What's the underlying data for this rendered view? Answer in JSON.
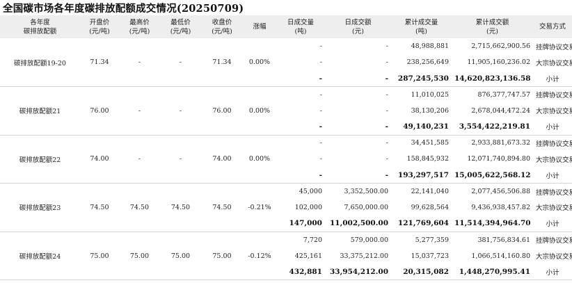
{
  "title": "全国碳市场各年度碳排放配额成交情况(20250709)",
  "headers": {
    "year": [
      "各年度",
      "碳排放配额"
    ],
    "open": [
      "开盘价",
      "(元/吨)"
    ],
    "high": [
      "最高价",
      "(元/吨)"
    ],
    "low": [
      "最低价",
      "(元/吨)"
    ],
    "close": [
      "收盘价",
      "(元/吨)"
    ],
    "change": [
      "涨幅"
    ],
    "day_vol": [
      "日成交量",
      "(吨)"
    ],
    "day_amt": [
      "日成交额",
      "(元)"
    ],
    "cum_vol": [
      "累计成交量",
      "(吨)"
    ],
    "cum_amt": [
      "累计成交额",
      "(元)"
    ],
    "mode": [
      "交易方式"
    ]
  },
  "groups": [
    {
      "name": "碳排放配额19-20",
      "open": "71.34",
      "high": "-",
      "low": "-",
      "close": "71.34",
      "change": "0.00%",
      "rows": [
        {
          "day_vol": "-",
          "day_amt": "-",
          "cum_vol": "48,988,881",
          "cum_amt": "2,715,662,900.56",
          "mode": "挂牌协议交易"
        },
        {
          "day_vol": "-",
          "day_amt": "-",
          "cum_vol": "238,256,649",
          "cum_amt": "11,905,160,236.02",
          "mode": "大宗协议交易"
        },
        {
          "day_vol": "-",
          "day_amt": "-",
          "cum_vol": "287,245,530",
          "cum_amt": "14,620,823,136.58",
          "mode": "小计"
        }
      ]
    },
    {
      "name": "碳排放配额21",
      "open": "76.00",
      "high": "-",
      "low": "-",
      "close": "76.00",
      "change": "0.00%",
      "rows": [
        {
          "day_vol": "-",
          "day_amt": "-",
          "cum_vol": "11,010,025",
          "cum_amt": "876,377,747.57",
          "mode": "挂牌协议交易"
        },
        {
          "day_vol": "-",
          "day_amt": "-",
          "cum_vol": "38,130,206",
          "cum_amt": "2,678,044,472.24",
          "mode": "大宗协议交易"
        },
        {
          "day_vol": "-",
          "day_amt": "-",
          "cum_vol": "49,140,231",
          "cum_amt": "3,554,422,219.81",
          "mode": "小计"
        }
      ]
    },
    {
      "name": "碳排放配额22",
      "open": "74.00",
      "high": "-",
      "low": "-",
      "close": "74.00",
      "change": "0.00%",
      "rows": [
        {
          "day_vol": "-",
          "day_amt": "-",
          "cum_vol": "34,451,585",
          "cum_amt": "2,933,881,673.32",
          "mode": "挂牌协议交易"
        },
        {
          "day_vol": "-",
          "day_amt": "-",
          "cum_vol": "158,845,932",
          "cum_amt": "12,071,740,894.80",
          "mode": "大宗协议交易"
        },
        {
          "day_vol": "-",
          "day_amt": "-",
          "cum_vol": "193,297,517",
          "cum_amt": "15,005,622,568.12",
          "mode": "小计"
        }
      ]
    },
    {
      "name": "碳排放配额23",
      "open": "74.50",
      "high": "74.50",
      "low": "74.50",
      "close": "74.50",
      "change": "-0.21%",
      "rows": [
        {
          "day_vol": "45,000",
          "day_amt": "3,352,500.00",
          "cum_vol": "22,141,040",
          "cum_amt": "2,077,456,506.88",
          "mode": "挂牌协议交易"
        },
        {
          "day_vol": "102,000",
          "day_amt": "7,650,000.00",
          "cum_vol": "99,628,564",
          "cum_amt": "9,436,938,457.82",
          "mode": "大宗协议交易"
        },
        {
          "day_vol": "147,000",
          "day_amt": "11,002,500.00",
          "cum_vol": "121,769,604",
          "cum_amt": "11,514,394,964.70",
          "mode": "小计"
        }
      ]
    },
    {
      "name": "碳排放配额24",
      "open": "75.00",
      "high": "75.00",
      "low": "75.00",
      "close": "75.00",
      "change": "-0.12%",
      "rows": [
        {
          "day_vol": "7,720",
          "day_amt": "579,000.00",
          "cum_vol": "5,277,359",
          "cum_amt": "381,756,834.61",
          "mode": "挂牌协议交易"
        },
        {
          "day_vol": "425,161",
          "day_amt": "33,375,212.00",
          "cum_vol": "15,037,723",
          "cum_amt": "1,066,514,160.80",
          "mode": "大宗协议交易"
        },
        {
          "day_vol": "432,881",
          "day_amt": "33,954,212.00",
          "cum_vol": "20,315,082",
          "cum_amt": "1,448,270,995.41",
          "mode": "小计"
        }
      ]
    }
  ]
}
